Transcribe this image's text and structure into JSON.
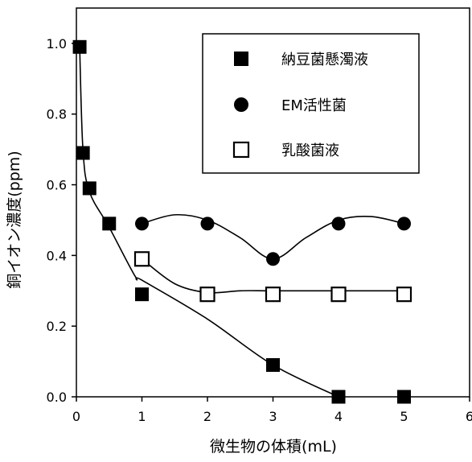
{
  "chart_data": {
    "type": "scatter",
    "xlabel": "微生物の体積(mL)",
    "ylabel": "銅イオン濃度(ppm)",
    "xlim": [
      0,
      6
    ],
    "ylim": [
      0,
      1.1
    ],
    "x_ticks": [
      0,
      1,
      2,
      3,
      4,
      5,
      6
    ],
    "y_ticks": [
      0.0,
      0.2,
      0.4,
      0.6,
      0.8,
      1.0
    ],
    "x_tick_labels": [
      "0",
      "1",
      "2",
      "3",
      "4",
      "5",
      "6"
    ],
    "y_tick_labels": [
      "0.0",
      "0.2",
      "0.4",
      "0.6",
      "0.8",
      "1.0"
    ],
    "grid": false,
    "legend_position": "top-right",
    "series": [
      {
        "name": "納豆菌懸濁液",
        "marker": "filled-square",
        "color": "#000000",
        "points": [
          {
            "x": 0.05,
            "y": 0.99
          },
          {
            "x": 0.1,
            "y": 0.69
          },
          {
            "x": 0.2,
            "y": 0.59
          },
          {
            "x": 0.5,
            "y": 0.49
          },
          {
            "x": 1.0,
            "y": 0.29
          },
          {
            "x": 3.0,
            "y": 0.09
          },
          {
            "x": 4.0,
            "y": 0.0
          },
          {
            "x": 5.0,
            "y": 0.0
          }
        ],
        "curve": [
          [
            0.05,
            0.99
          ],
          [
            0.1,
            0.7
          ],
          [
            0.2,
            0.58
          ],
          [
            0.5,
            0.48
          ],
          [
            0.9,
            0.34
          ],
          [
            1.0,
            0.33
          ],
          [
            2.0,
            0.22
          ],
          [
            3.0,
            0.09
          ],
          [
            4.0,
            0.0
          ]
        ]
      },
      {
        "name": "EM活性菌",
        "marker": "filled-circle",
        "color": "#000000",
        "points": [
          {
            "x": 1.0,
            "y": 0.49
          },
          {
            "x": 2.0,
            "y": 0.49
          },
          {
            "x": 3.0,
            "y": 0.39
          },
          {
            "x": 4.0,
            "y": 0.49
          },
          {
            "x": 5.0,
            "y": 0.49
          }
        ],
        "curve": [
          [
            1.0,
            0.49
          ],
          [
            1.5,
            0.515
          ],
          [
            2.0,
            0.5
          ],
          [
            2.5,
            0.45
          ],
          [
            3.0,
            0.39
          ],
          [
            3.5,
            0.45
          ],
          [
            4.0,
            0.5
          ],
          [
            4.5,
            0.51
          ],
          [
            5.0,
            0.49
          ]
        ]
      },
      {
        "name": "乳酸菌液",
        "marker": "open-square",
        "color": "#000000",
        "points": [
          {
            "x": 1.0,
            "y": 0.39
          },
          {
            "x": 2.0,
            "y": 0.29
          },
          {
            "x": 3.0,
            "y": 0.29
          },
          {
            "x": 4.0,
            "y": 0.29
          },
          {
            "x": 5.0,
            "y": 0.29
          }
        ],
        "curve": [
          [
            1.0,
            0.39
          ],
          [
            1.5,
            0.32
          ],
          [
            2.0,
            0.295
          ],
          [
            2.5,
            0.3
          ],
          [
            3.0,
            0.3
          ],
          [
            4.0,
            0.3
          ],
          [
            5.0,
            0.3
          ]
        ]
      }
    ]
  }
}
